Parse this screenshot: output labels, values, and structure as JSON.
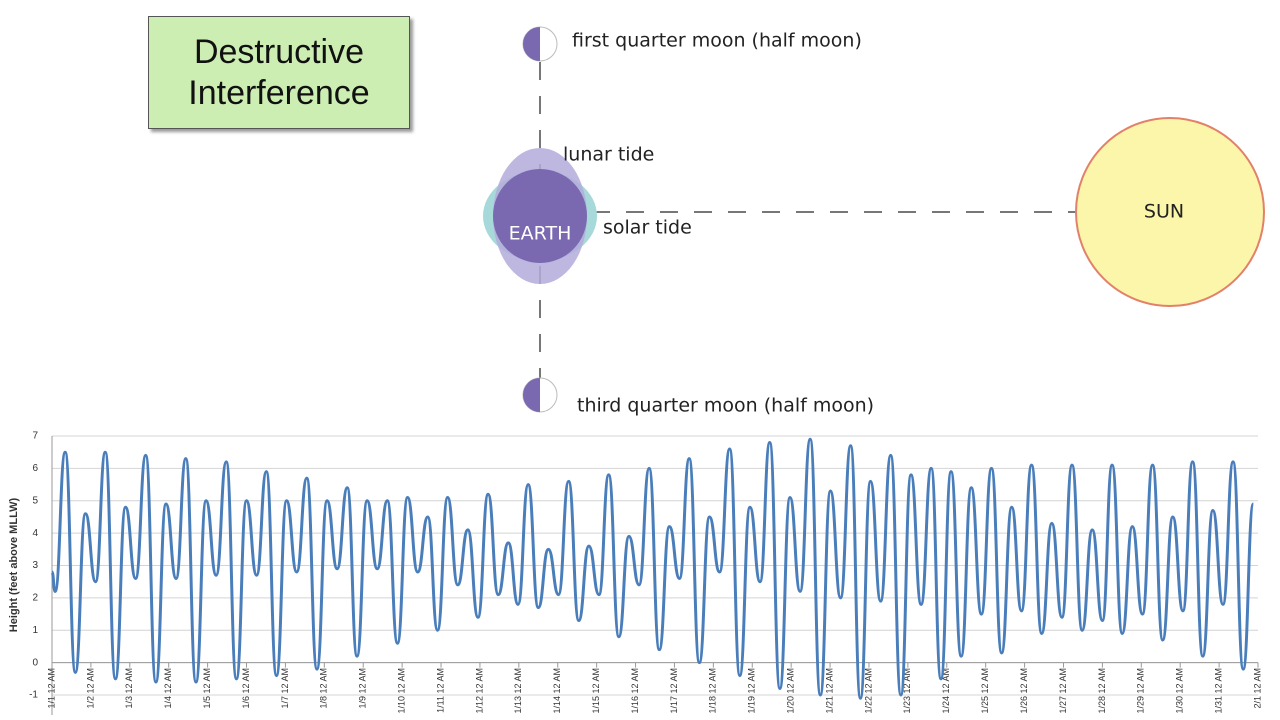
{
  "diagram": {
    "title": "Destructive Interference",
    "first_quarter": "first quarter moon (half moon)",
    "lunar_tide": "lunar tide",
    "earth": "EARTH",
    "solar_tide": "solar tide",
    "sun": "SUN",
    "third_quarter": "third quarter moon (half moon)"
  },
  "chart_data": {
    "type": "line",
    "y_label": "Height (feet above MLLW)",
    "color": "#4a7ebb",
    "grid": true,
    "xlim": [
      0,
      31
    ],
    "ylim": [
      -1,
      7
    ],
    "yticks": [
      -1,
      0,
      1,
      2,
      3,
      4,
      5,
      6,
      7
    ],
    "xticks": [
      {
        "value": 0,
        "label": "1/1 12 AM"
      },
      {
        "value": 1,
        "label": "1/2 12 AM"
      },
      {
        "value": 2,
        "label": "1/3 12 AM"
      },
      {
        "value": 3,
        "label": "1/4 12 AM"
      },
      {
        "value": 4,
        "label": "1/5 12 AM"
      },
      {
        "value": 5,
        "label": "1/6 12 AM"
      },
      {
        "value": 6,
        "label": "1/7 12 AM"
      },
      {
        "value": 7,
        "label": "1/8 12 AM"
      },
      {
        "value": 8,
        "label": "1/9 12 AM"
      },
      {
        "value": 9,
        "label": "1/10 12 AM"
      },
      {
        "value": 10,
        "label": "1/11 12 AM"
      },
      {
        "value": 11,
        "label": "1/12 12 AM"
      },
      {
        "value": 12,
        "label": "1/13 12 AM"
      },
      {
        "value": 13,
        "label": "1/14 12 AM"
      },
      {
        "value": 14,
        "label": "1/15 12 AM"
      },
      {
        "value": 15,
        "label": "1/16 12 AM"
      },
      {
        "value": 16,
        "label": "1/17 12 AM"
      },
      {
        "value": 17,
        "label": "1/18 12 AM"
      },
      {
        "value": 18,
        "label": "1/19 12 AM"
      },
      {
        "value": 19,
        "label": "1/20 12 AM"
      },
      {
        "value": 20,
        "label": "1/21 12 AM"
      },
      {
        "value": 21,
        "label": "1/22 12 AM"
      },
      {
        "value": 22,
        "label": "1/23 12 AM"
      },
      {
        "value": 23,
        "label": "1/24 12 AM"
      },
      {
        "value": 24,
        "label": "1/25 12 AM"
      },
      {
        "value": 25,
        "label": "1/26 12 AM"
      },
      {
        "value": 26,
        "label": "1/27 12 AM"
      },
      {
        "value": 27,
        "label": "1/28 12 AM"
      },
      {
        "value": 28,
        "label": "1/29 12 AM"
      },
      {
        "value": 29,
        "label": "1/30 12 AM"
      },
      {
        "value": 30,
        "label": "1/31 12 AM"
      },
      {
        "value": 31,
        "label": "2/1 12 AM"
      }
    ],
    "x": [
      0,
      0.08,
      0.34,
      0.6,
      0.86,
      1.12,
      1.37,
      1.63,
      1.89,
      2.15,
      2.41,
      2.67,
      2.93,
      3.19,
      3.44,
      3.7,
      3.96,
      4.22,
      4.48,
      4.74,
      5.0,
      5.26,
      5.51,
      5.77,
      6.03,
      6.29,
      6.55,
      6.81,
      7.07,
      7.33,
      7.59,
      7.84,
      8.1,
      8.36,
      8.62,
      8.88,
      9.14,
      9.4,
      9.66,
      9.91,
      10.17,
      10.43,
      10.69,
      10.95,
      11.21,
      11.47,
      11.73,
      11.98,
      12.24,
      12.5,
      12.76,
      13.02,
      13.28,
      13.54,
      13.8,
      14.06,
      14.31,
      14.57,
      14.83,
      15.09,
      15.35,
      15.61,
      15.87,
      16.13,
      16.38,
      16.64,
      16.9,
      17.16,
      17.42,
      17.68,
      17.94,
      18.2,
      18.45,
      18.71,
      18.97,
      19.23,
      19.49,
      19.75,
      20.01,
      20.27,
      20.53,
      20.78,
      21.04,
      21.3,
      21.56,
      21.82,
      22.08,
      22.34,
      22.6,
      22.85,
      23.11,
      23.37,
      23.63,
      23.89,
      24.15,
      24.41,
      24.67,
      24.92,
      25.18,
      25.44,
      25.7,
      25.96,
      26.22,
      26.48,
      26.74,
      27.0,
      27.25,
      27.51,
      27.77,
      28.03,
      28.29,
      28.55,
      28.81,
      29.07,
      29.32,
      29.58,
      29.84,
      30.1,
      30.36,
      30.62,
      30.88
    ],
    "values": [
      2.8,
      2.2,
      6.5,
      -0.3,
      4.6,
      2.5,
      6.5,
      -0.5,
      4.8,
      2.6,
      6.4,
      -0.6,
      4.9,
      2.6,
      6.3,
      -0.6,
      5.0,
      2.7,
      6.2,
      -0.5,
      5.0,
      2.7,
      5.9,
      -0.4,
      5.0,
      2.8,
      5.7,
      -0.2,
      5.0,
      2.9,
      5.4,
      0.2,
      5.0,
      2.9,
      5.0,
      0.6,
      5.1,
      2.8,
      4.5,
      1.0,
      5.1,
      2.4,
      4.1,
      1.4,
      5.2,
      2.1,
      3.7,
      1.8,
      5.5,
      1.7,
      3.5,
      2.1,
      5.6,
      1.3,
      3.6,
      2.1,
      5.8,
      0.8,
      3.9,
      2.4,
      6.0,
      0.4,
      4.2,
      2.6,
      6.3,
      0.0,
      4.5,
      2.8,
      6.6,
      -0.4,
      4.8,
      2.5,
      6.8,
      -0.8,
      5.1,
      2.2,
      6.9,
      -1.0,
      5.3,
      2.0,
      6.7,
      -1.1,
      5.6,
      1.9,
      6.4,
      -1.0,
      5.8,
      1.8,
      6.0,
      -0.5,
      5.9,
      0.2,
      5.4,
      1.5,
      6.0,
      0.3,
      4.8,
      1.6,
      6.1,
      0.9,
      4.3,
      1.4,
      6.1,
      1.0,
      4.1,
      1.3,
      6.1,
      0.9,
      4.2,
      1.5,
      6.1,
      0.7,
      4.5,
      1.6,
      6.2,
      0.2,
      4.7,
      1.8,
      6.2,
      -0.2,
      4.9
    ]
  }
}
